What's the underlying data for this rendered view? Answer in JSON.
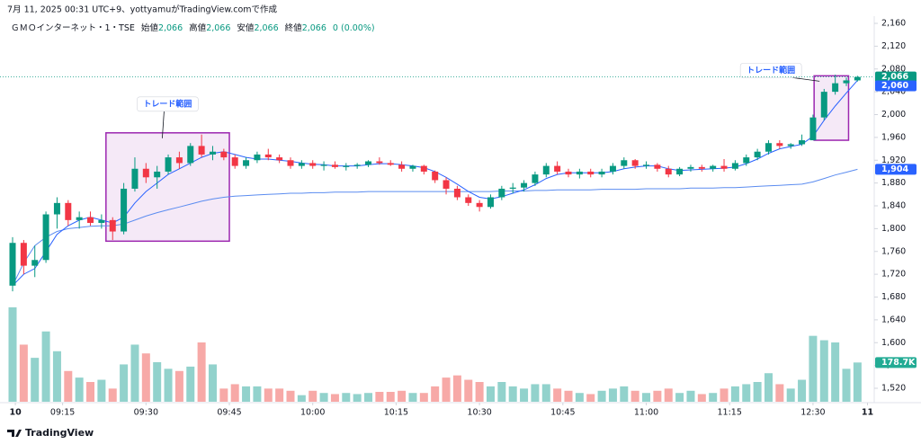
{
  "chart_data": {
    "type": "candlestick",
    "header": "7月 11, 2025 00:31 UTC+9、yottyamuがTradingView.comで作成",
    "legend": {
      "symbol": "ＧＭＯインターネット・1・TSE",
      "open_name": "始値",
      "open": "2,066",
      "high_name": "高値",
      "high": "2,066",
      "low_name": "安値",
      "low": "2,066",
      "close_name": "終値",
      "close": "2,066",
      "change": "0 (0.00%)"
    },
    "brand": "TradingView",
    "colors": {
      "up": "#089981",
      "down": "#f23645",
      "up_volume": "#92d2cc",
      "down_volume": "#f7a9a7",
      "ma": "#2962ff",
      "vwap": "#5b8cf0"
    },
    "open": [
      1700,
      1775,
      1735,
      1745,
      1825,
      1845,
      1815,
      1820,
      1810,
      1815,
      1795,
      1870,
      1905,
      1890,
      1900,
      1925,
      1915,
      1945,
      1930,
      1935,
      1925,
      1910,
      1920,
      1930,
      1925,
      1920,
      1910,
      1915,
      1910,
      1912,
      1908,
      1910,
      1912,
      1918,
      1915,
      1912,
      1905,
      1910,
      1900,
      1885,
      1870,
      1855,
      1845,
      1838,
      1855,
      1870,
      1872,
      1880,
      1895,
      1910,
      1900,
      1895,
      1900,
      1895,
      1900,
      1910,
      1920,
      1910,
      1912,
      1905,
      1895,
      1905,
      1908,
      1905,
      1910,
      1905,
      1915,
      1925,
      1935,
      1950,
      1945,
      1948,
      1955,
      1995,
      2040,
      2055,
      2060
    ],
    "high": [
      1785,
      1780,
      1770,
      1830,
      1855,
      1850,
      1830,
      1830,
      1825,
      1820,
      1880,
      1925,
      1915,
      1910,
      1930,
      1935,
      1950,
      1965,
      1945,
      1940,
      1930,
      1925,
      1935,
      1940,
      1930,
      1925,
      1920,
      1920,
      1918,
      1918,
      1915,
      1915,
      1920,
      1925,
      1920,
      1918,
      1912,
      1912,
      1902,
      1890,
      1875,
      1860,
      1850,
      1860,
      1875,
      1880,
      1885,
      1900,
      1915,
      1918,
      1905,
      1905,
      1905,
      1905,
      1915,
      1925,
      1922,
      1918,
      1915,
      1910,
      1908,
      1912,
      1912,
      1912,
      1922,
      1920,
      1930,
      1940,
      1955,
      1955,
      1950,
      1965,
      2000,
      2045,
      2070,
      2065,
      2068
    ],
    "low": [
      1690,
      1720,
      1715,
      1740,
      1800,
      1805,
      1800,
      1805,
      1800,
      1780,
      1790,
      1865,
      1880,
      1870,
      1895,
      1905,
      1910,
      1925,
      1920,
      1920,
      1905,
      1905,
      1915,
      1920,
      1915,
      1905,
      1905,
      1905,
      1902,
      1905,
      1902,
      1905,
      1908,
      1912,
      1910,
      1900,
      1900,
      1895,
      1880,
      1860,
      1850,
      1840,
      1830,
      1835,
      1850,
      1862,
      1865,
      1875,
      1890,
      1895,
      1890,
      1888,
      1890,
      1890,
      1895,
      1905,
      1905,
      1905,
      1900,
      1890,
      1892,
      1900,
      1900,
      1900,
      1900,
      1902,
      1910,
      1920,
      1930,
      1940,
      1940,
      1945,
      1955,
      1990,
      2035,
      2050,
      2058
    ],
    "close": [
      1775,
      1735,
      1745,
      1825,
      1845,
      1815,
      1820,
      1810,
      1815,
      1795,
      1870,
      1905,
      1890,
      1900,
      1925,
      1915,
      1945,
      1930,
      1935,
      1925,
      1910,
      1920,
      1930,
      1925,
      1920,
      1910,
      1915,
      1910,
      1912,
      1908,
      1910,
      1912,
      1918,
      1915,
      1912,
      1905,
      1910,
      1900,
      1885,
      1870,
      1855,
      1845,
      1838,
      1855,
      1870,
      1872,
      1880,
      1895,
      1910,
      1900,
      1895,
      1900,
      1895,
      1900,
      1910,
      1920,
      1910,
      1912,
      1905,
      1895,
      1905,
      1908,
      1905,
      1910,
      1905,
      1915,
      1925,
      1935,
      1950,
      1945,
      1948,
      1955,
      1995,
      2040,
      2055,
      2060,
      2066
    ],
    "volume": [
      430000,
      260000,
      200000,
      320000,
      230000,
      140000,
      110000,
      90000,
      100000,
      60000,
      170000,
      260000,
      220000,
      180000,
      150000,
      140000,
      160000,
      270000,
      170000,
      60000,
      80000,
      70000,
      70000,
      60000,
      60000,
      50000,
      30000,
      50000,
      40000,
      35000,
      40000,
      35000,
      40000,
      45000,
      45000,
      50000,
      40000,
      40000,
      70000,
      110000,
      120000,
      100000,
      90000,
      70000,
      90000,
      70000,
      60000,
      80000,
      80000,
      60000,
      50000,
      40000,
      35000,
      50000,
      60000,
      70000,
      50000,
      40000,
      50000,
      60000,
      40000,
      50000,
      35000,
      40000,
      60000,
      70000,
      80000,
      90000,
      130000,
      80000,
      60000,
      100000,
      300000,
      280000,
      270000,
      150000,
      178700
    ],
    "ma": [
      1700,
      1720,
      1730,
      1760,
      1790,
      1805,
      1815,
      1820,
      1815,
      1810,
      1820,
      1845,
      1865,
      1880,
      1895,
      1905,
      1915,
      1925,
      1932,
      1935,
      1930,
      1925,
      1922,
      1922,
      1920,
      1918,
      1915,
      1913,
      1912,
      1910,
      1910,
      1910,
      1912,
      1914,
      1914,
      1912,
      1910,
      1907,
      1900,
      1890,
      1878,
      1865,
      1855,
      1852,
      1856,
      1862,
      1868,
      1877,
      1888,
      1895,
      1898,
      1898,
      1898,
      1898,
      1900,
      1905,
      1908,
      1910,
      1910,
      1905,
      1902,
      1903,
      1904,
      1905,
      1906,
      1908,
      1914,
      1922,
      1932,
      1940,
      1944,
      1948,
      1962,
      1990,
      2015,
      2038,
      2060
    ],
    "vwap": [
      1700,
      1740,
      1770,
      1785,
      1795,
      1800,
      1802,
      1804,
      1805,
      1805,
      1808,
      1815,
      1822,
      1828,
      1833,
      1838,
      1843,
      1848,
      1852,
      1855,
      1857,
      1858,
      1859,
      1860,
      1861,
      1862,
      1862,
      1863,
      1863,
      1864,
      1864,
      1864,
      1865,
      1865,
      1865,
      1865,
      1865,
      1865,
      1865,
      1865,
      1865,
      1865,
      1865,
      1865,
      1866,
      1866,
      1866,
      1867,
      1867,
      1868,
      1868,
      1868,
      1868,
      1869,
      1869,
      1869,
      1869,
      1870,
      1870,
      1870,
      1870,
      1871,
      1871,
      1871,
      1872,
      1872,
      1873,
      1874,
      1875,
      1876,
      1877,
      1878,
      1882,
      1888,
      1894,
      1899,
      1904
    ],
    "close_label": "2,066",
    "ma_label": "2,060",
    "vwap_label": "1,904",
    "volume_label": "178.7K",
    "ylim": [
      1520,
      2160
    ],
    "volume_lim": [
      0,
      450000
    ],
    "yticks": [
      {
        "value": 1520,
        "label": "1,520"
      },
      {
        "value": 1560,
        "label": "1,560"
      },
      {
        "value": 1600,
        "label": "1,600"
      },
      {
        "value": 1640,
        "label": "1,640"
      },
      {
        "value": 1680,
        "label": "1,680"
      },
      {
        "value": 1720,
        "label": "1,720"
      },
      {
        "value": 1760,
        "label": "1,760"
      },
      {
        "value": 1800,
        "label": "1,800"
      },
      {
        "value": 1840,
        "label": "1,840"
      },
      {
        "value": 1880,
        "label": "1,880"
      },
      {
        "value": 1920,
        "label": "1,920"
      },
      {
        "value": 1960,
        "label": "1,960"
      },
      {
        "value": 2000,
        "label": "2,000"
      },
      {
        "value": 2040,
        "label": "2,040"
      },
      {
        "value": 2080,
        "label": "2,080"
      },
      {
        "value": 2120,
        "label": "2,120"
      },
      {
        "value": 2160,
        "label": "2,160"
      }
    ],
    "xticks": [
      {
        "value": 0.25,
        "label": "10"
      },
      {
        "value": 4.5,
        "label": "09:15"
      },
      {
        "value": 12,
        "label": "09:30"
      },
      {
        "value": 19.5,
        "label": "09:45"
      },
      {
        "value": 27,
        "label": "10:00"
      },
      {
        "value": 34.5,
        "label": "10:15"
      },
      {
        "value": 42,
        "label": "10:30"
      },
      {
        "value": 49.5,
        "label": "10:45"
      },
      {
        "value": 57,
        "label": "11:00"
      },
      {
        "value": 64.5,
        "label": "11:15"
      },
      {
        "value": 72,
        "label": "12:30"
      },
      {
        "value": 76.9,
        "label": "11"
      }
    ],
    "annotations": [
      {
        "label": "トレード範囲",
        "x": [
          8.4,
          19.5
        ],
        "y": [
          1778,
          1968
        ]
      },
      {
        "label": "トレード範囲",
        "x": [
          72.1,
          75.2
        ],
        "y": [
          1955,
          2068
        ]
      }
    ]
  }
}
